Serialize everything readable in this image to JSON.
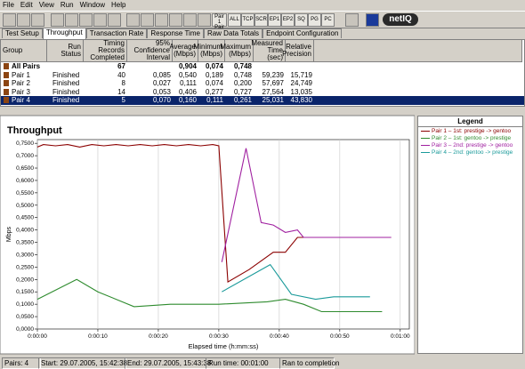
{
  "menu": [
    "File",
    "Edit",
    "View",
    "Run",
    "Window",
    "Help"
  ],
  "toolbar_pairs": [
    "Pair 1",
    "Pair 2"
  ],
  "toolbar": [
    "ALL",
    "TCP",
    "SCR",
    "EP1",
    "EP2",
    "SQ",
    "PG",
    "PC"
  ],
  "logo": "netIQ",
  "tabs": [
    {
      "label": "Test Setup"
    },
    {
      "label": "Throughput",
      "active": true
    },
    {
      "label": "Transaction Rate"
    },
    {
      "label": "Response Time"
    },
    {
      "label": "Raw Data Totals"
    },
    {
      "label": "Endpoint Configuration"
    }
  ],
  "table": {
    "columns": [
      "Group",
      "Run Status",
      "Timing Records Completed",
      "95% Confidence Interval",
      "Average (Mbps)",
      "Minimum (Mbps)",
      "Maximum (Mbps)",
      "Measured Time (sec)",
      "Relative Precision"
    ],
    "rows": [
      {
        "cells": [
          "All Pairs",
          null,
          "67",
          null,
          "0,904",
          "0,074",
          "0,748",
          null,
          null
        ],
        "bold": true
      },
      {
        "cells": [
          "Pair 1",
          "Finished",
          "40",
          "0,085",
          "0,540",
          "0,189",
          "0,748",
          "59,239",
          "15,719"
        ]
      },
      {
        "cells": [
          "Pair 2",
          "Finished",
          "8",
          "0,027",
          "0,111",
          "0,074",
          "0,200",
          "57,697",
          "24,749"
        ]
      },
      {
        "cells": [
          "Pair 3",
          "Finished",
          "14",
          "0,053",
          "0,406",
          "0,277",
          "0,727",
          "27,564",
          "13,035"
        ]
      },
      {
        "cells": [
          "Pair 4",
          "Finished",
          "5",
          "0,070",
          "0,160",
          "0,111",
          "0,261",
          "25,031",
          "43,830"
        ],
        "selected": true
      }
    ]
  },
  "chart_data": {
    "type": "line",
    "title": "Throughput",
    "y_label": "Mbps",
    "x_label": "Elapsed time (h:mm:ss)",
    "xlim": [
      0,
      61.5
    ],
    "ylim": [
      0,
      0.765
    ],
    "grid": "x",
    "xticks": [
      {
        "value": 0,
        "label": "0:00:00"
      },
      {
        "value": 10,
        "label": "0:00:10"
      },
      {
        "value": 20,
        "label": "0:00:20"
      },
      {
        "value": 30,
        "label": "0:00:30"
      },
      {
        "value": 40,
        "label": "0:00:40"
      },
      {
        "value": 50,
        "label": "0:00:50"
      },
      {
        "value": 60,
        "label": "0:01:00"
      }
    ],
    "yticks": [
      {
        "value": 0,
        "label": "0,0000"
      },
      {
        "value": 0.05,
        "label": "0,0500"
      },
      {
        "value": 0.1,
        "label": "0,1000"
      },
      {
        "value": 0.15,
        "label": "0,1500"
      },
      {
        "value": 0.2,
        "label": "0,2000"
      },
      {
        "value": 0.25,
        "label": "0,2500"
      },
      {
        "value": 0.3,
        "label": "0,3000"
      },
      {
        "value": 0.35,
        "label": "0,3500"
      },
      {
        "value": 0.4,
        "label": "0,4000"
      },
      {
        "value": 0.45,
        "label": "0,4500"
      },
      {
        "value": 0.5,
        "label": "0,5000"
      },
      {
        "value": 0.55,
        "label": "0,5500"
      },
      {
        "value": 0.6,
        "label": "0,6000"
      },
      {
        "value": 0.65,
        "label": "0,6500"
      },
      {
        "value": 0.7,
        "label": "0,7000"
      },
      {
        "value": 0.75,
        "label": "0,7500"
      }
    ],
    "legend_title": "Legend",
    "series": [
      {
        "name": "Pair 1 – 1st: prestige -> gentoo",
        "color": "#8b0000",
        "x": [
          0,
          1,
          3,
          5,
          7,
          9,
          11,
          13,
          15,
          17,
          19,
          21,
          23,
          25,
          27,
          29,
          30,
          31.5,
          35,
          39,
          41,
          43,
          48,
          52,
          55,
          58.5
        ],
        "values": [
          0.735,
          0.745,
          0.74,
          0.745,
          0.735,
          0.745,
          0.74,
          0.745,
          0.74,
          0.745,
          0.74,
          0.745,
          0.74,
          0.745,
          0.74,
          0.745,
          0.74,
          0.19,
          0.24,
          0.31,
          0.31,
          0.37,
          0.37,
          0.37,
          0.37,
          0.37
        ]
      },
      {
        "name": "Pair 2 – 1st: gentoo -> prestige",
        "color": "#2e8b2e",
        "x": [
          0,
          6.5,
          10,
          16,
          22,
          30,
          38,
          41,
          44,
          47,
          52,
          57
        ],
        "values": [
          0.12,
          0.2,
          0.15,
          0.09,
          0.1,
          0.1,
          0.11,
          0.12,
          0.1,
          0.07,
          0.07,
          0.07
        ]
      },
      {
        "name": "Pair 3 – 2nd: prestige -> gentoo",
        "color": "#a020a0",
        "x": [
          30.5,
          34.5,
          37,
          39,
          41,
          43,
          44,
          48,
          55,
          58.5
        ],
        "values": [
          0.27,
          0.73,
          0.43,
          0.42,
          0.39,
          0.4,
          0.37,
          0.37,
          0.37,
          0.37
        ]
      },
      {
        "name": "Pair 4 – 2nd: gentoo -> prestige",
        "color": "#1a9a9a",
        "x": [
          30.5,
          38.5,
          42,
          46,
          49,
          55
        ],
        "values": [
          0.15,
          0.26,
          0.14,
          0.12,
          0.13,
          0.13
        ]
      }
    ]
  },
  "status": [
    "Pairs: 4",
    "Start: 29.07.2005, 15:42:38",
    "End: 29.07.2005, 15:43:38",
    "Run time: 00:01:00",
    "Ran to completion"
  ]
}
